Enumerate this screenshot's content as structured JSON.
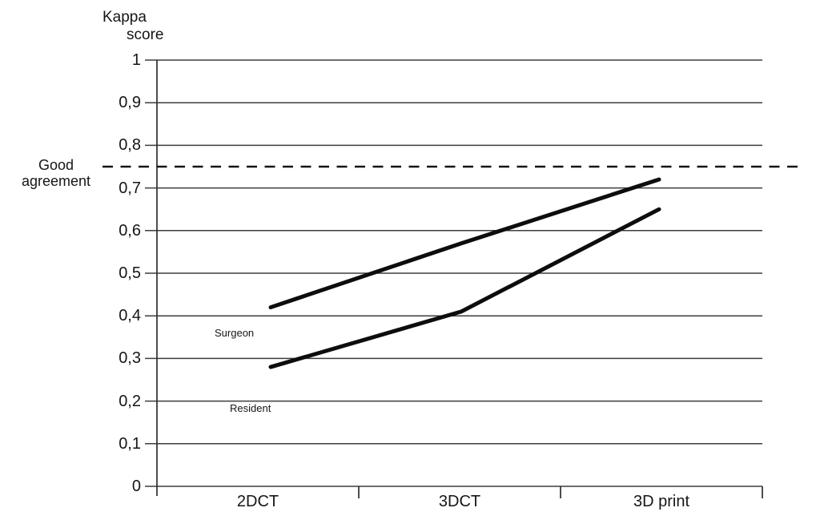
{
  "figure": {
    "background": "#ffffff",
    "axis_title_lines": [
      "Kappa",
      "score"
    ],
    "reference_label_lines": [
      "Good",
      "agreement"
    ]
  },
  "chart_data": {
    "type": "line",
    "title": "Kappa score",
    "xlabel": "",
    "ylabel": "Kappa score",
    "categories": [
      "2DCT",
      "3DCT",
      "3D print"
    ],
    "series": [
      {
        "name": "Surgeon",
        "values": [
          0.42,
          0.57,
          0.72
        ],
        "color": "#0d0d0d"
      },
      {
        "name": "Resident",
        "values": [
          0.28,
          0.41,
          0.65
        ],
        "color": "#0d0d0d"
      }
    ],
    "reference_line": {
      "label": "Good agreement",
      "value": 0.75,
      "style": "dashed",
      "color": "#141414"
    },
    "ylim": [
      0,
      1
    ],
    "y_tick_step": 0.1,
    "y_tick_labels": [
      "0",
      "0,1",
      "0,2",
      "0,3",
      "0,4",
      "0,5",
      "0,6",
      "0,7",
      "0,8",
      "0,9",
      "1"
    ],
    "grid": true,
    "legend_position": "inline-annotations",
    "colors": {
      "grid": "#3d3d3d",
      "axis": "#2e2e2e",
      "text": "#161616"
    }
  }
}
